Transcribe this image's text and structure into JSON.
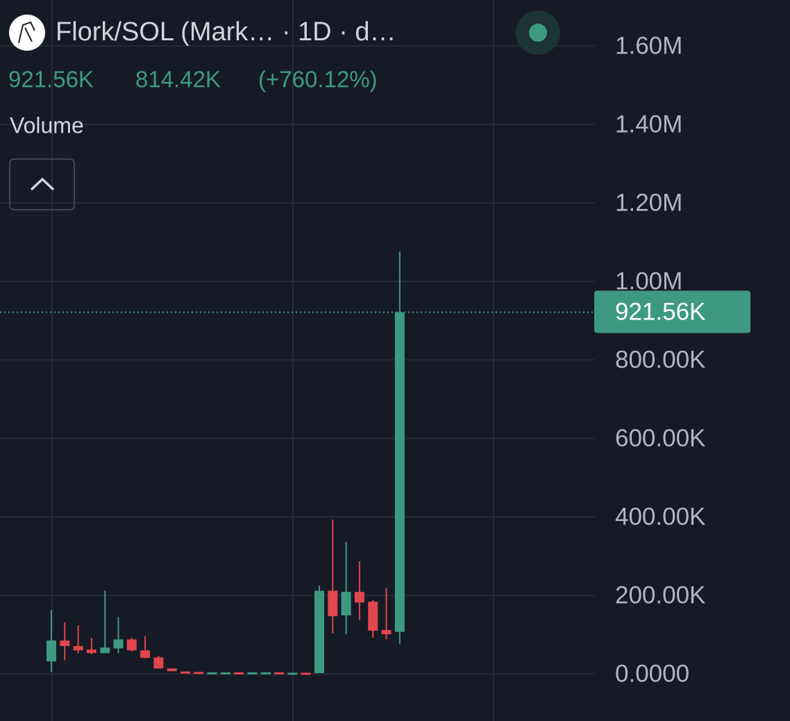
{
  "chart_data": {
    "type": "candlestick",
    "title": "Flork/SOL (Mark… · 1D · d…",
    "indicator": "Volume",
    "last": {
      "value": 921560,
      "label": "921.56K"
    },
    "change": {
      "value": 814420,
      "label": "814.42K"
    },
    "change_percent": "(+760.12%)",
    "up_color": "#3d9a80",
    "down_color": "#e0464e",
    "open": [
      32000,
      85000,
      71000,
      62000,
      53000,
      65000,
      88000,
      60000,
      42000,
      14000,
      6000,
      5000,
      4000,
      4000,
      4000,
      3000,
      3000,
      4000,
      3000,
      3000,
      2000,
      212000,
      149000,
      209000,
      184000,
      112000,
      107140
    ],
    "high": [
      163000,
      131000,
      124000,
      92000,
      212000,
      145000,
      92000,
      96000,
      46000,
      14000,
      6000,
      5000,
      4000,
      4000,
      4000,
      4000,
      4000,
      4000,
      3000,
      3000,
      225000,
      393000,
      336000,
      287000,
      188000,
      219000,
      1076000
    ],
    "low": [
      5000,
      35000,
      53000,
      50000,
      53000,
      53000,
      57000,
      39000,
      14000,
      7000,
      5000,
      4000,
      4000,
      4000,
      3000,
      3000,
      3000,
      3000,
      3000,
      2000,
      2000,
      103000,
      101000,
      138000,
      92000,
      88000,
      76000
    ],
    "close": [
      85000,
      71000,
      60000,
      53000,
      67000,
      88000,
      60000,
      41000,
      14000,
      7000,
      5000,
      4000,
      4000,
      4000,
      3000,
      4000,
      4000,
      3000,
      3000,
      2000,
      212000,
      147000,
      209000,
      182000,
      110000,
      101000,
      921560
    ],
    "ylim": [
      -120000,
      1717000
    ],
    "yticks": [
      {
        "value": 0,
        "label": "0.0000"
      },
      {
        "value": 200000,
        "label": "200.00K"
      },
      {
        "value": 400000,
        "label": "400.00K"
      },
      {
        "value": 600000,
        "label": "600.00K"
      },
      {
        "value": 800000,
        "label": "800.00K"
      },
      {
        "value": 1000000,
        "label": "1.00M"
      },
      {
        "value": 1200000,
        "label": "1.20M"
      },
      {
        "value": 1400000,
        "label": "1.40M"
      },
      {
        "value": 1600000,
        "label": "1.60M"
      }
    ],
    "grid": true
  }
}
